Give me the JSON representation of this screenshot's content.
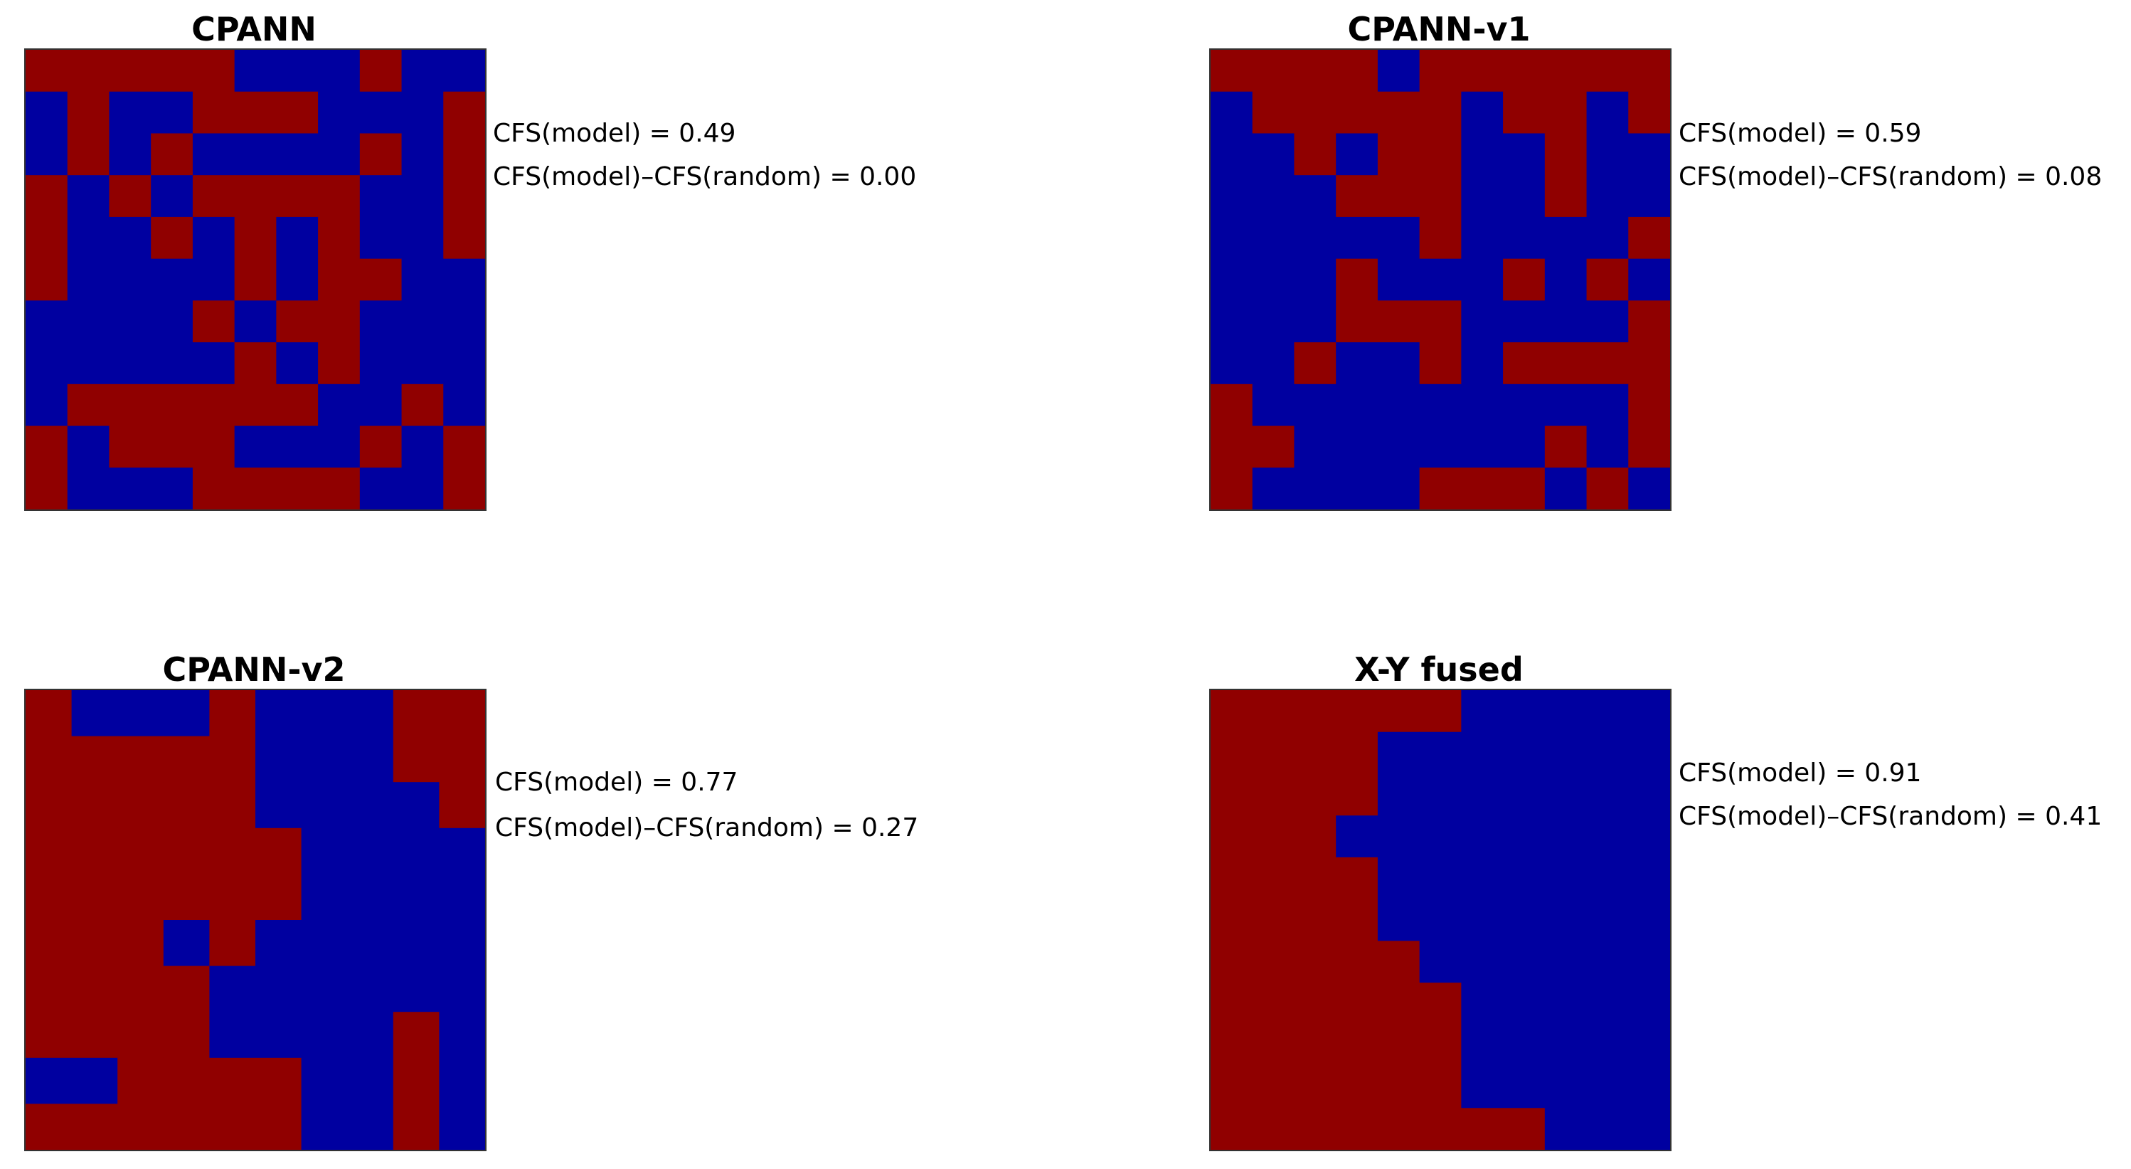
{
  "colors": {
    "1": "#900000",
    "0": "#0000a0"
  },
  "chart_data": [
    {
      "type": "heatmap",
      "title": "CPANN",
      "metrics": [
        "CFS(model) = 0.49",
        "CFS(model)–CFS(random) = 0.00"
      ],
      "grid": [
        [
          1,
          1,
          1,
          1,
          1,
          0,
          0,
          0,
          1,
          0,
          0
        ],
        [
          0,
          1,
          0,
          0,
          1,
          1,
          1,
          0,
          0,
          0,
          1
        ],
        [
          0,
          1,
          0,
          1,
          0,
          0,
          0,
          0,
          1,
          0,
          1
        ],
        [
          1,
          0,
          1,
          0,
          1,
          1,
          1,
          1,
          0,
          0,
          1
        ],
        [
          1,
          0,
          0,
          1,
          0,
          1,
          0,
          1,
          0,
          0,
          1
        ],
        [
          1,
          0,
          0,
          0,
          0,
          1,
          0,
          1,
          1,
          0,
          0
        ],
        [
          0,
          0,
          0,
          0,
          1,
          0,
          1,
          1,
          0,
          0,
          0
        ],
        [
          0,
          0,
          0,
          0,
          0,
          1,
          0,
          1,
          0,
          0,
          0
        ],
        [
          0,
          1,
          1,
          1,
          1,
          1,
          1,
          0,
          0,
          1,
          0
        ],
        [
          1,
          0,
          1,
          1,
          1,
          0,
          0,
          0,
          1,
          0,
          1
        ],
        [
          1,
          0,
          0,
          0,
          1,
          1,
          1,
          1,
          0,
          0,
          1
        ]
      ]
    },
    {
      "type": "heatmap",
      "title": "CPANN-v1",
      "metrics": [
        "CFS(model) = 0.59",
        "CFS(model)–CFS(random) = 0.08"
      ],
      "grid": [
        [
          1,
          1,
          1,
          1,
          0,
          1,
          1,
          1,
          1,
          1,
          1
        ],
        [
          0,
          1,
          1,
          1,
          1,
          1,
          0,
          1,
          1,
          0,
          1
        ],
        [
          0,
          0,
          1,
          0,
          1,
          1,
          0,
          0,
          1,
          0,
          0
        ],
        [
          0,
          0,
          0,
          1,
          1,
          1,
          0,
          0,
          1,
          0,
          0
        ],
        [
          0,
          0,
          0,
          0,
          0,
          1,
          0,
          0,
          0,
          0,
          1
        ],
        [
          0,
          0,
          0,
          1,
          0,
          0,
          0,
          1,
          0,
          1,
          0
        ],
        [
          0,
          0,
          0,
          1,
          1,
          1,
          0,
          0,
          0,
          0,
          1
        ],
        [
          0,
          0,
          1,
          0,
          0,
          1,
          0,
          1,
          1,
          1,
          1
        ],
        [
          1,
          0,
          0,
          0,
          0,
          0,
          0,
          0,
          0,
          0,
          1
        ],
        [
          1,
          1,
          0,
          0,
          0,
          0,
          0,
          0,
          1,
          0,
          1
        ],
        [
          1,
          0,
          0,
          0,
          0,
          1,
          1,
          1,
          0,
          1,
          0
        ]
      ]
    },
    {
      "type": "heatmap",
      "title": "CPANN-v2",
      "metrics": [
        "CFS(model) = 0.77",
        "CFS(model)–CFS(random) = 0.27"
      ],
      "grid": [
        [
          1,
          0,
          0,
          0,
          1,
          0,
          0,
          0,
          1,
          1
        ],
        [
          1,
          1,
          1,
          1,
          1,
          0,
          0,
          0,
          1,
          1
        ],
        [
          1,
          1,
          1,
          1,
          1,
          0,
          0,
          0,
          0,
          1
        ],
        [
          1,
          1,
          1,
          1,
          1,
          1,
          0,
          0,
          0,
          0
        ],
        [
          1,
          1,
          1,
          1,
          1,
          1,
          0,
          0,
          0,
          0
        ],
        [
          1,
          1,
          1,
          0,
          1,
          0,
          0,
          0,
          0,
          0
        ],
        [
          1,
          1,
          1,
          1,
          0,
          0,
          0,
          0,
          0,
          0
        ],
        [
          1,
          1,
          1,
          1,
          0,
          0,
          0,
          0,
          1,
          0
        ],
        [
          0,
          0,
          1,
          1,
          1,
          1,
          0,
          0,
          1,
          0
        ],
        [
          1,
          1,
          1,
          1,
          1,
          1,
          0,
          0,
          1,
          0
        ]
      ]
    },
    {
      "type": "heatmap",
      "title": "X-Y fused",
      "metrics": [
        "CFS(model) = 0.91",
        "CFS(model)–CFS(random) = 0.41"
      ],
      "grid": [
        [
          1,
          1,
          1,
          1,
          1,
          1,
          0,
          0,
          0,
          0,
          0
        ],
        [
          1,
          1,
          1,
          1,
          0,
          0,
          0,
          0,
          0,
          0,
          0
        ],
        [
          1,
          1,
          1,
          1,
          0,
          0,
          0,
          0,
          0,
          0,
          0
        ],
        [
          1,
          1,
          1,
          0,
          0,
          0,
          0,
          0,
          0,
          0,
          0
        ],
        [
          1,
          1,
          1,
          1,
          0,
          0,
          0,
          0,
          0,
          0,
          0
        ],
        [
          1,
          1,
          1,
          1,
          0,
          0,
          0,
          0,
          0,
          0,
          0
        ],
        [
          1,
          1,
          1,
          1,
          1,
          0,
          0,
          0,
          0,
          0,
          0
        ],
        [
          1,
          1,
          1,
          1,
          1,
          1,
          0,
          0,
          0,
          0,
          0
        ],
        [
          1,
          1,
          1,
          1,
          1,
          1,
          0,
          0,
          0,
          0,
          0
        ],
        [
          1,
          1,
          1,
          1,
          1,
          1,
          0,
          0,
          0,
          0,
          0
        ],
        [
          1,
          1,
          1,
          1,
          1,
          1,
          1,
          1,
          0,
          0,
          0
        ]
      ]
    }
  ]
}
